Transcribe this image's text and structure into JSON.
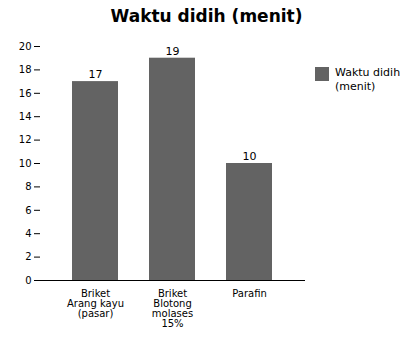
{
  "chart_data": {
    "type": "bar",
    "title": "Waktu didih (menit)",
    "categories": [
      "Briket\nArang kayu\n(pasar)",
      "Briket\nBlotong\nmolases\n15%",
      "Parafin"
    ],
    "series": [
      {
        "name": "Waktu didih\n(menit)",
        "color": "#636363",
        "values": [
          17,
          19,
          10
        ]
      }
    ],
    "ylim": [
      0,
      20
    ],
    "yticks": [
      0,
      2,
      4,
      6,
      8,
      10,
      12,
      14,
      16,
      18,
      20
    ],
    "grid": false,
    "legend": "right",
    "data_labels": true
  }
}
